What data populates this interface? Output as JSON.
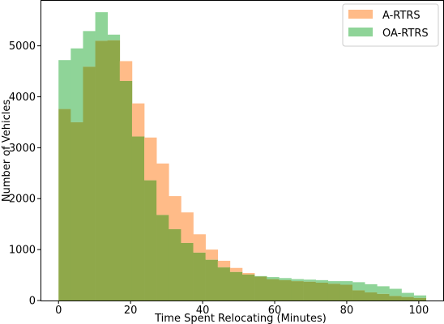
{
  "chart_data": {
    "type": "bar",
    "subtype": "overlapping-histogram",
    "xlabel": "Time Spent Relocating (Minutes)",
    "ylabel": "Number of Vehicles",
    "xlim": [
      -5,
      107
    ],
    "ylim": [
      0,
      5900
    ],
    "xticks": [
      0,
      20,
      40,
      60,
      80,
      100
    ],
    "yticks": [
      0,
      1000,
      2000,
      3000,
      4000,
      5000
    ],
    "bin_edges": [
      0,
      3.4,
      6.8,
      10.2,
      13.6,
      17,
      20.4,
      23.8,
      27.2,
      30.6,
      34,
      37.4,
      40.8,
      44.2,
      47.6,
      51,
      54.4,
      57.8,
      61.2,
      64.6,
      68,
      71.4,
      74.8,
      78.2,
      81.6,
      85,
      88.4,
      91.8,
      95.2,
      98.6,
      102
    ],
    "overlap_color": "#8fa84a",
    "legend_position": "top-right",
    "series": [
      {
        "name": "A-RTRS",
        "color": "#ffbb88",
        "values": [
          3760,
          3500,
          4590,
          5100,
          5110,
          4700,
          3870,
          3200,
          2690,
          2050,
          1730,
          1300,
          1000,
          780,
          640,
          540,
          470,
          420,
          400,
          380,
          370,
          350,
          330,
          310,
          200,
          160,
          130,
          90,
          70,
          50
        ]
      },
      {
        "name": "OA-RTRS",
        "color": "#8fd498",
        "values": [
          4720,
          4950,
          5290,
          5660,
          5220,
          4310,
          3220,
          2360,
          1680,
          1400,
          1130,
          940,
          800,
          650,
          560,
          510,
          480,
          460,
          440,
          420,
          410,
          400,
          380,
          380,
          360,
          320,
          280,
          230,
          150,
          100
        ]
      }
    ]
  }
}
